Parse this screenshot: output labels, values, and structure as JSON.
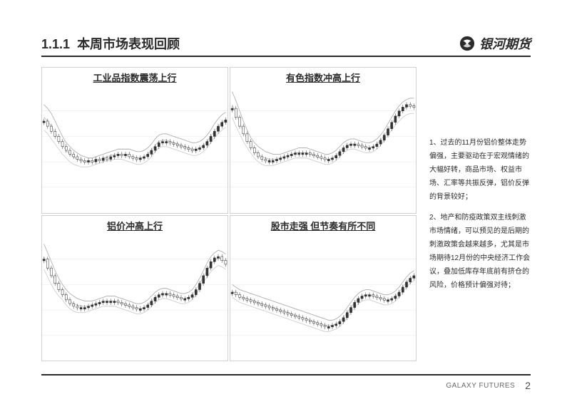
{
  "header": {
    "section_number": "1.1.1",
    "title": "本周市场表现回顾",
    "brand": "银河期货"
  },
  "charts": {
    "grid": [
      {
        "title": "工业品指数震荡上行",
        "type": "candlestick"
      },
      {
        "title": "有色指数冲高上行",
        "type": "candlestick"
      },
      {
        "title": "铝价冲高上行",
        "type": "candlestick"
      },
      {
        "title": "股市走强 但节奏有所不同",
        "type": "candlestick"
      }
    ],
    "style": {
      "line_color": "#888888",
      "candle_up": "#333333",
      "candle_down": "#ffffff",
      "candle_border": "#333333",
      "grid_color": "#e8e8e8",
      "background": "#ffffff",
      "ma_colors": [
        "#aaaaaa",
        "#bbbbbb",
        "#cccccc"
      ]
    },
    "series": {
      "chart1": {
        "ma_upper": [
          85,
          82,
          78,
          72,
          66,
          60,
          55,
          52,
          49,
          47,
          45,
          44,
          43,
          43,
          44,
          45,
          46,
          47,
          48,
          49,
          50,
          50,
          50,
          50,
          49,
          48,
          48,
          49,
          51,
          54,
          58,
          61,
          62,
          62,
          61,
          60,
          59,
          58,
          57,
          56,
          55,
          55,
          56,
          58,
          61,
          65,
          70,
          74,
          77,
          79
        ],
        "ma_mid": [
          75,
          72,
          68,
          63,
          58,
          53,
          49,
          46,
          44,
          42,
          41,
          40,
          40,
          40,
          41,
          42,
          43,
          44,
          45,
          46,
          46,
          46,
          46,
          45,
          44,
          43,
          43,
          44,
          46,
          49,
          53,
          56,
          57,
          57,
          56,
          55,
          54,
          53,
          52,
          51,
          50,
          50,
          51,
          53,
          56,
          60,
          64,
          68,
          71,
          73
        ],
        "ma_lower": [
          65,
          62,
          58,
          54,
          50,
          46,
          43,
          40,
          38,
          37,
          36,
          36,
          36,
          37,
          38,
          39,
          40,
          41,
          41,
          42,
          42,
          42,
          41,
          40,
          39,
          38,
          38,
          39,
          41,
          44,
          48,
          51,
          52,
          52,
          51,
          50,
          49,
          48,
          47,
          46,
          45,
          45,
          46,
          48,
          51,
          55,
          59,
          62,
          65,
          67
        ],
        "candles": [
          72,
          68,
          64,
          60,
          56,
          52,
          49,
          46,
          44,
          42,
          41,
          40,
          41,
          40,
          42,
          41,
          43,
          42,
          44,
          45,
          46,
          45,
          46,
          44,
          43,
          42,
          43,
          44,
          46,
          49,
          52,
          55,
          56,
          56,
          55,
          54,
          53,
          52,
          51,
          50,
          49,
          50,
          51,
          53,
          56,
          60,
          64,
          68,
          71,
          73
        ]
      },
      "chart2": {
        "ma_upper": [
          95,
          88,
          80,
          72,
          65,
          59,
          55,
          52,
          50,
          48,
          47,
          46,
          46,
          46,
          47,
          48,
          49,
          50,
          51,
          51,
          51,
          50,
          49,
          48,
          47,
          46,
          46,
          47,
          49,
          52,
          55,
          57,
          58,
          58,
          57,
          56,
          55,
          55,
          56,
          58,
          61,
          65,
          70,
          75,
          80,
          84,
          87,
          89,
          90,
          90
        ],
        "ma_mid": [
          85,
          78,
          71,
          64,
          58,
          53,
          49,
          46,
          44,
          43,
          42,
          42,
          42,
          43,
          44,
          45,
          46,
          47,
          47,
          47,
          47,
          46,
          45,
          44,
          43,
          42,
          42,
          43,
          45,
          48,
          51,
          53,
          54,
          54,
          53,
          52,
          51,
          51,
          52,
          54,
          57,
          61,
          65,
          70,
          74,
          78,
          81,
          83,
          84,
          84
        ],
        "ma_lower": [
          75,
          68,
          62,
          56,
          51,
          47,
          43,
          40,
          38,
          37,
          37,
          37,
          38,
          39,
          40,
          41,
          42,
          43,
          43,
          43,
          43,
          42,
          41,
          40,
          39,
          38,
          38,
          39,
          41,
          44,
          47,
          49,
          50,
          50,
          49,
          48,
          47,
          47,
          48,
          50,
          53,
          57,
          61,
          65,
          69,
          72,
          75,
          77,
          78,
          78
        ],
        "candles": [
          82,
          75,
          68,
          62,
          56,
          51,
          47,
          44,
          42,
          41,
          41,
          41,
          42,
          43,
          44,
          45,
          46,
          47,
          47,
          47,
          47,
          46,
          45,
          44,
          43,
          42,
          42,
          43,
          45,
          48,
          51,
          53,
          54,
          54,
          53,
          52,
          51,
          51,
          52,
          54,
          57,
          61,
          66,
          71,
          76,
          80,
          83,
          85,
          84,
          83
        ]
      },
      "chart3": {
        "ma_upper": [
          92,
          85,
          78,
          71,
          65,
          60,
          56,
          53,
          51,
          49,
          48,
          47,
          47,
          47,
          48,
          49,
          50,
          51,
          51,
          51,
          50,
          49,
          48,
          47,
          46,
          45,
          45,
          46,
          48,
          51,
          54,
          56,
          57,
          57,
          56,
          55,
          54,
          53,
          53,
          54,
          56,
          60,
          65,
          71,
          77,
          82,
          85,
          87,
          86,
          84
        ],
        "ma_mid": [
          82,
          75,
          69,
          63,
          58,
          54,
          50,
          47,
          45,
          44,
          43,
          43,
          43,
          44,
          45,
          46,
          47,
          47,
          47,
          47,
          46,
          45,
          44,
          43,
          42,
          41,
          41,
          42,
          44,
          47,
          50,
          52,
          53,
          53,
          52,
          51,
          50,
          49,
          49,
          50,
          52,
          56,
          61,
          66,
          71,
          76,
          79,
          81,
          80,
          78
        ],
        "ma_lower": [
          72,
          66,
          60,
          55,
          51,
          48,
          44,
          41,
          39,
          38,
          38,
          38,
          39,
          40,
          41,
          42,
          43,
          43,
          43,
          43,
          42,
          41,
          40,
          39,
          38,
          37,
          37,
          38,
          40,
          43,
          46,
          48,
          49,
          49,
          48,
          47,
          46,
          45,
          45,
          46,
          48,
          52,
          57,
          62,
          66,
          70,
          73,
          75,
          74,
          72
        ],
        "candles": [
          80,
          73,
          67,
          61,
          56,
          52,
          48,
          45,
          43,
          42,
          42,
          42,
          43,
          44,
          45,
          46,
          47,
          47,
          47,
          47,
          46,
          45,
          44,
          43,
          42,
          41,
          41,
          42,
          44,
          47,
          50,
          52,
          53,
          53,
          52,
          51,
          50,
          49,
          49,
          50,
          52,
          56,
          61,
          67,
          73,
          78,
          81,
          82,
          79,
          76
        ]
      },
      "chart4": {
        "ma_upper": [
          60,
          58,
          56,
          55,
          54,
          53,
          52,
          51,
          50,
          49,
          48,
          47,
          46,
          45,
          44,
          43,
          42,
          41,
          40,
          39,
          38,
          37,
          36,
          35,
          34,
          33,
          32,
          32,
          33,
          35,
          38,
          42,
          46,
          50,
          53,
          55,
          56,
          56,
          55,
          54,
          53,
          52,
          52,
          53,
          55,
          58,
          62,
          66,
          69,
          71
        ],
        "ma_mid": [
          55,
          53,
          51,
          50,
          49,
          48,
          47,
          46,
          45,
          44,
          43,
          42,
          41,
          40,
          39,
          38,
          37,
          36,
          35,
          34,
          33,
          32,
          31,
          30,
          29,
          28,
          28,
          28,
          29,
          31,
          34,
          38,
          42,
          46,
          49,
          51,
          52,
          52,
          51,
          50,
          49,
          48,
          48,
          49,
          51,
          54,
          58,
          62,
          65,
          67
        ],
        "ma_lower": [
          50,
          48,
          46,
          45,
          44,
          43,
          42,
          41,
          40,
          39,
          38,
          37,
          36,
          35,
          34,
          33,
          32,
          31,
          30,
          29,
          28,
          27,
          26,
          25,
          24,
          23,
          23,
          24,
          25,
          27,
          30,
          34,
          38,
          42,
          45,
          47,
          48,
          48,
          47,
          46,
          45,
          44,
          44,
          45,
          47,
          50,
          54,
          58,
          61,
          63
        ],
        "candles": [
          54,
          52,
          50,
          49,
          48,
          47,
          46,
          45,
          44,
          43,
          42,
          41,
          40,
          39,
          38,
          37,
          36,
          35,
          34,
          33,
          32,
          31,
          30,
          29,
          28,
          27,
          27,
          28,
          29,
          31,
          34,
          38,
          42,
          46,
          49,
          51,
          52,
          52,
          51,
          50,
          49,
          48,
          48,
          49,
          51,
          54,
          58,
          62,
          65,
          67
        ]
      }
    }
  },
  "commentary": [
    "1、过去的11月份铝价整体走势偏强，主要驱动在于宏观情绪的大幅好转，商品市场、权益市场、汇率等共振反弹，铝价反弹的背景较好；",
    "2、地产和防疫政策双主线刺激市场情绪，可以预见的是后期的刺激政策会越来越多，尤其是市场期待12月份的中央经济工作会议，叠加低库存年底前有挤仓的风险，价格预计偏强对待；"
  ],
  "footer": {
    "text": "GALAXY FUTURES",
    "page": "2"
  },
  "colors": {
    "text": "#2b2b2b",
    "rule": "#2b2b2b",
    "footer_text": "#6b6b6b"
  }
}
